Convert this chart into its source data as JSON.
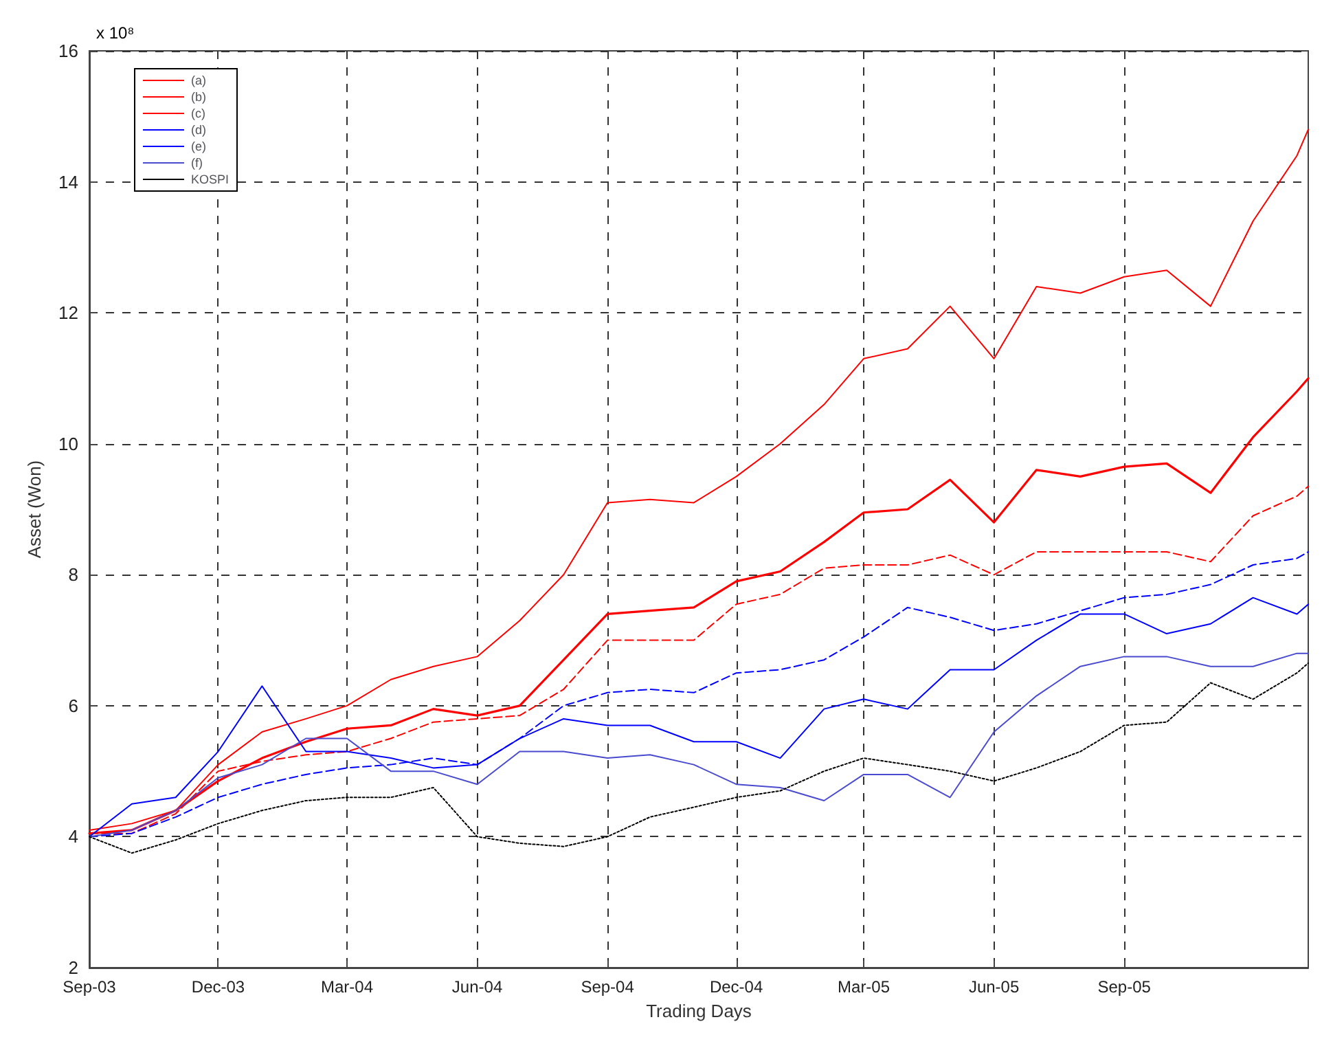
{
  "chart_data": {
    "type": "line",
    "xlabel": "Trading Days",
    "ylabel": "Asset (Won)",
    "annotations": [
      "x 10⁸"
    ],
    "x": [
      "2003-09-01",
      "2003-10-01",
      "2003-11-01",
      "2003-12-01",
      "2004-01-01",
      "2004-02-01",
      "2004-03-01",
      "2004-04-01",
      "2004-05-01",
      "2004-06-01",
      "2004-07-01",
      "2004-08-01",
      "2004-09-01",
      "2004-10-01",
      "2004-11-01",
      "2004-12-01",
      "2005-01-01",
      "2005-02-01",
      "2005-03-01",
      "2005-04-01",
      "2005-05-01",
      "2005-06-01",
      "2005-07-01",
      "2005-08-01",
      "2005-09-01",
      "2005-10-01",
      "2005-11-01",
      "2005-12-01",
      "2006-01-01",
      "2006-01-09"
    ],
    "xlim": [
      "2003-09-01",
      "2006-01-09"
    ],
    "xticks": [
      {
        "value": "2003-09-01",
        "label": "Sep-03"
      },
      {
        "value": "2003-12-01",
        "label": "Dec-03"
      },
      {
        "value": "2004-03-01",
        "label": "Mar-04"
      },
      {
        "value": "2004-06-01",
        "label": "Jun-04"
      },
      {
        "value": "2004-09-01",
        "label": "Sep-04"
      },
      {
        "value": "2004-12-01",
        "label": "Dec-04"
      },
      {
        "value": "2005-03-01",
        "label": "Mar-05"
      },
      {
        "value": "2005-06-01",
        "label": "Jun-05"
      },
      {
        "value": "2005-09-01",
        "label": "Sep-05"
      }
    ],
    "ylim": [
      2,
      16
    ],
    "yticks": [
      2,
      4,
      6,
      8,
      10,
      12,
      14,
      16
    ],
    "grid": true,
    "legend": "top left",
    "series": [
      {
        "name": "(a)",
        "color": "#ff0000",
        "line_style": "solid",
        "values": [
          4.1,
          4.2,
          4.4,
          5.1,
          5.6,
          5.8,
          6.0,
          6.4,
          6.6,
          6.75,
          7.3,
          8.0,
          9.1,
          9.15,
          9.1,
          9.5,
          10.0,
          10.6,
          11.3,
          11.45,
          12.1,
          11.3,
          12.4,
          12.3,
          12.55,
          12.65,
          12.1,
          13.4,
          14.4,
          14.8
        ]
      },
      {
        "name": "(b)",
        "color": "#ff0000",
        "line_style": "solid",
        "values": [
          4.05,
          4.1,
          4.4,
          4.85,
          5.2,
          5.45,
          5.65,
          5.7,
          5.95,
          5.85,
          6.0,
          6.7,
          7.4,
          7.45,
          7.5,
          7.9,
          8.05,
          8.5,
          8.95,
          9.0,
          9.45,
          8.8,
          9.6,
          9.5,
          9.65,
          9.7,
          9.25,
          10.1,
          10.8,
          11.0
        ]
      },
      {
        "name": "(c)",
        "color": "#ff0000",
        "line_style": "dashed",
        "values": [
          4.05,
          4.05,
          4.35,
          5.0,
          5.15,
          5.25,
          5.3,
          5.5,
          5.75,
          5.8,
          5.85,
          6.25,
          7.0,
          7.0,
          7.0,
          7.55,
          7.7,
          8.1,
          8.15,
          8.15,
          8.3,
          8.0,
          8.35,
          8.35,
          8.35,
          8.35,
          8.2,
          8.9,
          9.2,
          9.35
        ]
      },
      {
        "name": "(d)",
        "color": "#0000ff",
        "line_style": "dashed",
        "values": [
          4.0,
          4.05,
          4.3,
          4.6,
          4.8,
          4.95,
          5.05,
          5.1,
          5.2,
          5.1,
          5.5,
          6.0,
          6.2,
          6.25,
          6.2,
          6.5,
          6.55,
          6.7,
          7.05,
          7.5,
          7.35,
          7.15,
          7.25,
          7.45,
          7.65,
          7.7,
          7.85,
          8.15,
          8.25,
          8.35
        ]
      },
      {
        "name": "(e)",
        "color": "#0000ff",
        "line_style": "solid",
        "values": [
          4.0,
          4.5,
          4.6,
          5.3,
          6.3,
          5.3,
          5.3,
          5.2,
          5.05,
          5.1,
          5.5,
          5.8,
          5.7,
          5.7,
          5.45,
          5.45,
          5.2,
          5.95,
          6.1,
          5.95,
          6.55,
          6.55,
          7.0,
          7.4,
          7.4,
          7.1,
          7.25,
          7.65,
          7.4,
          7.55
        ]
      },
      {
        "name": "(f)",
        "color": "#4a4ad0",
        "line_style": "solid",
        "values": [
          4.0,
          4.1,
          4.4,
          4.9,
          5.1,
          5.5,
          5.5,
          5.0,
          5.0,
          4.8,
          5.3,
          5.3,
          5.2,
          5.25,
          5.1,
          4.8,
          4.75,
          4.55,
          4.95,
          4.95,
          4.6,
          5.6,
          6.15,
          6.6,
          6.75,
          6.75,
          6.6,
          6.6,
          6.8,
          6.8
        ]
      },
      {
        "name": "KOSPI",
        "color": "#000000",
        "line_style": "dotted",
        "values": [
          4.0,
          3.75,
          3.95,
          4.2,
          4.4,
          4.55,
          4.6,
          4.6,
          4.75,
          4.0,
          3.9,
          3.85,
          4.0,
          4.3,
          4.45,
          4.6,
          4.7,
          5.0,
          5.2,
          5.1,
          5.0,
          4.85,
          5.05,
          5.3,
          5.7,
          5.75,
          6.35,
          6.1,
          6.5,
          6.65
        ]
      }
    ]
  }
}
